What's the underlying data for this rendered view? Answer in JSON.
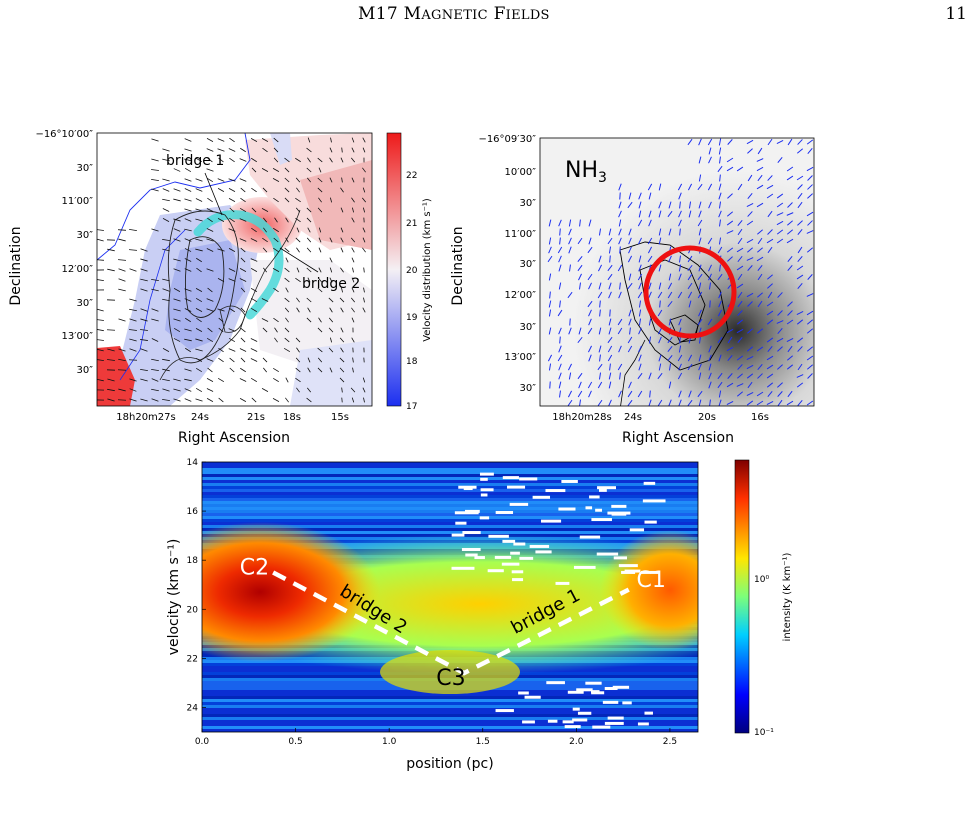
{
  "header": {
    "title": "M17 Magnetic Fields",
    "page": "11"
  },
  "panel_left": {
    "yticks": [
      "−16°10′00″",
      "30″",
      "11′00″",
      "30″",
      "12′00″",
      "30″",
      "13′00″",
      "30″"
    ],
    "xticks": [
      "18h20m27s",
      "24s",
      "21s",
      "18s",
      "15s"
    ],
    "xlabel": "Right Ascension",
    "ylabel": "Declination",
    "ann_bridge1": "bridge 1",
    "ann_bridge2": "bridge 2",
    "colorbar": {
      "label": "Velocity distribution (km s⁻¹)",
      "ticks": [
        "22",
        "21",
        "20",
        "19",
        "18",
        "17"
      ]
    }
  },
  "panel_right": {
    "label": "NH3",
    "yticks": [
      "−16°09′30″",
      "10′00″",
      "30″",
      "11′00″",
      "30″",
      "12′00″",
      "30″",
      "13′00″",
      "30″"
    ],
    "xticks": [
      "18h20m28s",
      "24s",
      "20s",
      "16s"
    ],
    "xlabel": "Right Ascension",
    "ylabel": "Declination"
  },
  "chart_data": {
    "type": "heatmap",
    "xlabel": "position (pc)",
    "ylabel": "velocity (km s⁻¹)",
    "xlim": [
      0,
      2.65
    ],
    "ylim": [
      25,
      14
    ],
    "xticks": [
      "0.0",
      "0.5",
      "1.0",
      "1.5",
      "2.0",
      "2.5"
    ],
    "yticks": [
      "14",
      "16",
      "18",
      "20",
      "22",
      "24"
    ],
    "colorbar": {
      "label": "intensity (K km⁻¹)",
      "ticks": [
        "10⁰",
        "10⁻¹"
      ],
      "scale": "log"
    },
    "annotations": [
      {
        "text": "C2",
        "x": 0.28,
        "y": 18.3
      },
      {
        "text": "C1",
        "x": 2.4,
        "y": 18.8
      },
      {
        "text": "C3",
        "x": 1.33,
        "y": 22.8
      },
      {
        "text": "bridge 2",
        "x": 0.9,
        "y": 20.2
      },
      {
        "text": "bridge 1",
        "x": 1.85,
        "y": 20.3
      }
    ],
    "path": [
      [
        0.38,
        18.5
      ],
      [
        1.4,
        22.6
      ],
      [
        2.28,
        19.2
      ]
    ]
  }
}
